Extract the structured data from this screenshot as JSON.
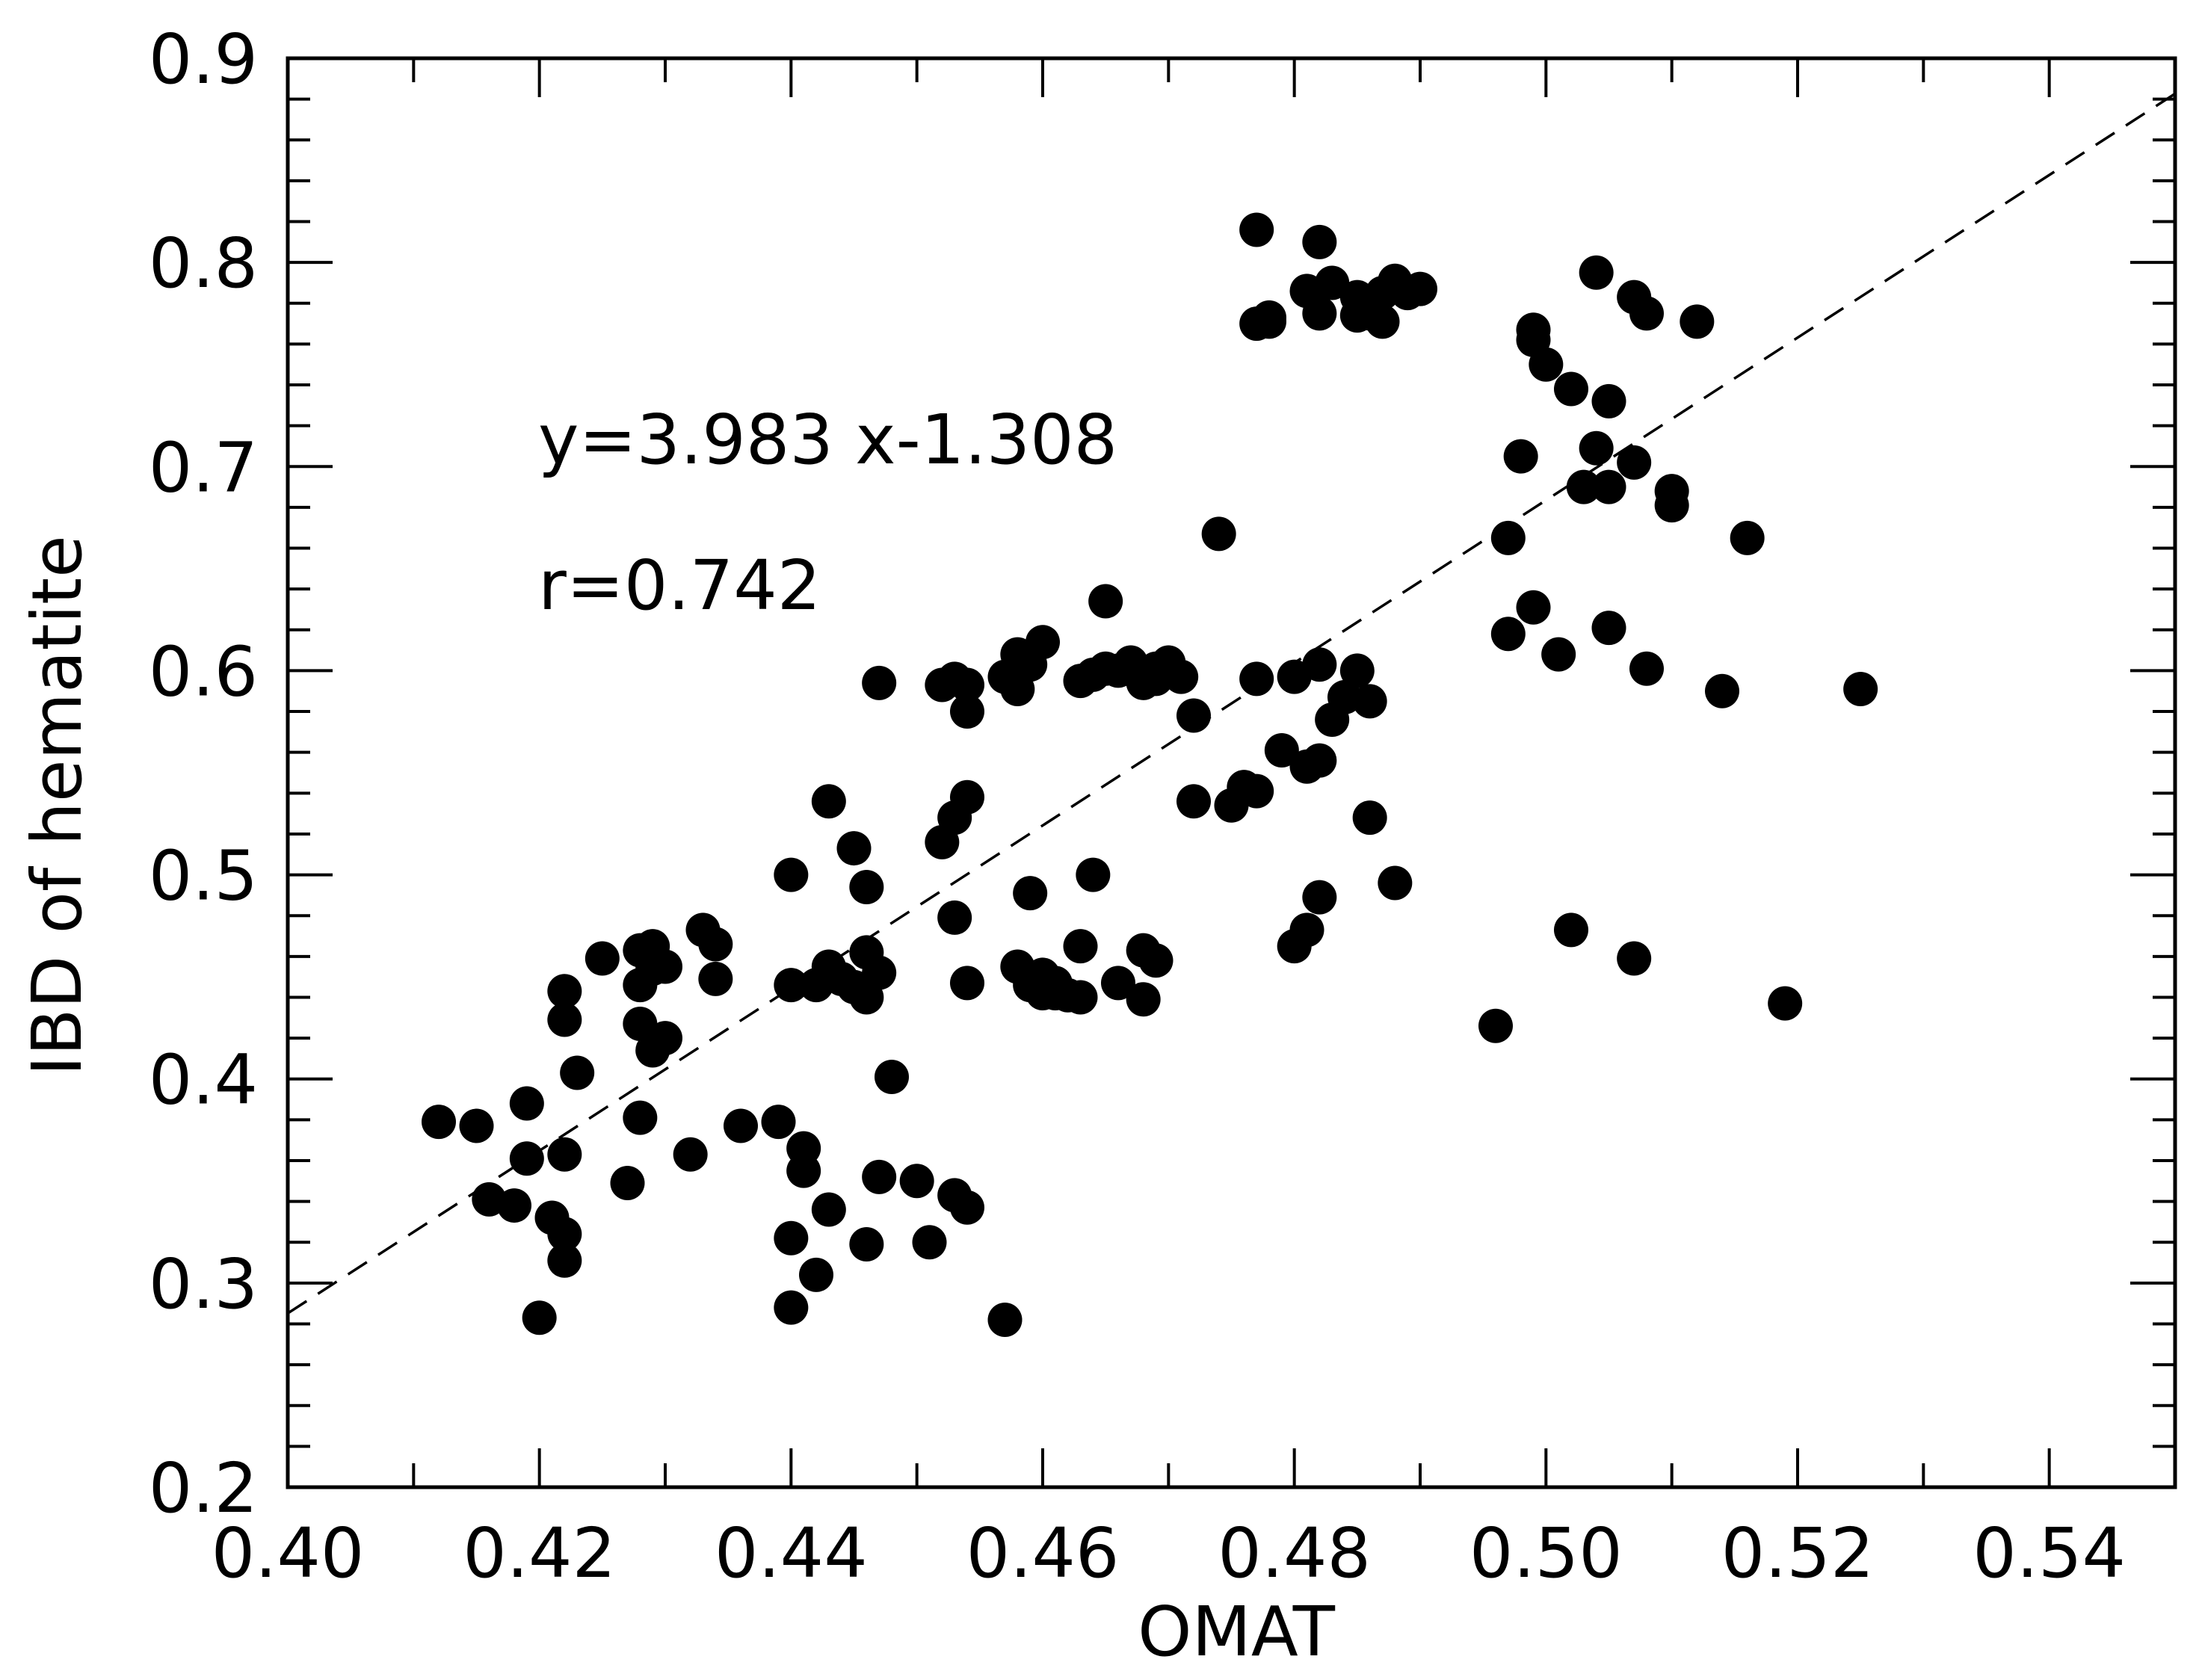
{
  "chart_data": {
    "type": "scatter",
    "title": "",
    "xlabel": "OMAT",
    "ylabel": "IBD of hematite",
    "xlim": [
      0.4,
      0.55
    ],
    "ylim": [
      0.2,
      0.9
    ],
    "x_ticks": [
      0.4,
      0.42,
      0.44,
      0.46,
      0.48,
      0.5,
      0.52,
      0.54
    ],
    "x_tick_labels": [
      "0.40",
      "0.42",
      "0.44",
      "0.46",
      "0.48",
      "0.50",
      "0.52",
      "0.54"
    ],
    "y_ticks": [
      0.2,
      0.3,
      0.4,
      0.5,
      0.6,
      0.7,
      0.8,
      0.9
    ],
    "y_tick_labels": [
      "0.2",
      "0.3",
      "0.4",
      "0.5",
      "0.6",
      "0.7",
      "0.8",
      "0.9"
    ],
    "grid": false,
    "legend": "none",
    "marker_color": "#000000",
    "annotations": {
      "equation": "y=3.983  x-1.308",
      "r_value": "r=0.742"
    },
    "fit_line": {
      "slope": 3.983,
      "intercept": -1.308,
      "style": "dashed"
    },
    "series": [
      {
        "points": [
          [
            0.412,
            0.379
          ],
          [
            0.415,
            0.377
          ],
          [
            0.416,
            0.341
          ],
          [
            0.418,
            0.338
          ],
          [
            0.419,
            0.361
          ],
          [
            0.419,
            0.388
          ],
          [
            0.42,
            0.283
          ],
          [
            0.421,
            0.332
          ],
          [
            0.422,
            0.324
          ],
          [
            0.422,
            0.311
          ],
          [
            0.422,
            0.363
          ],
          [
            0.422,
            0.429
          ],
          [
            0.422,
            0.443
          ],
          [
            0.423,
            0.403
          ],
          [
            0.425,
            0.459
          ],
          [
            0.427,
            0.349
          ],
          [
            0.428,
            0.381
          ],
          [
            0.428,
            0.427
          ],
          [
            0.428,
            0.446
          ],
          [
            0.428,
            0.463
          ],
          [
            0.429,
            0.414
          ],
          [
            0.429,
            0.454
          ],
          [
            0.429,
            0.465
          ],
          [
            0.43,
            0.42
          ],
          [
            0.43,
            0.455
          ],
          [
            0.432,
            0.363
          ],
          [
            0.433,
            0.473
          ],
          [
            0.434,
            0.449
          ],
          [
            0.434,
            0.466
          ],
          [
            0.436,
            0.377
          ],
          [
            0.439,
            0.379
          ],
          [
            0.44,
            0.322
          ],
          [
            0.44,
            0.288
          ],
          [
            0.44,
            0.446
          ],
          [
            0.44,
            0.5
          ],
          [
            0.441,
            0.366
          ],
          [
            0.441,
            0.355
          ],
          [
            0.442,
            0.304
          ],
          [
            0.442,
            0.446
          ],
          [
            0.443,
            0.536
          ],
          [
            0.443,
            0.336
          ],
          [
            0.443,
            0.455
          ],
          [
            0.444,
            0.449
          ],
          [
            0.445,
            0.513
          ],
          [
            0.445,
            0.445
          ],
          [
            0.446,
            0.494
          ],
          [
            0.446,
            0.44
          ],
          [
            0.446,
            0.462
          ],
          [
            0.446,
            0.319
          ],
          [
            0.447,
            0.352
          ],
          [
            0.447,
            0.452
          ],
          [
            0.447,
            0.594
          ],
          [
            0.448,
            0.401
          ],
          [
            0.45,
            0.35
          ],
          [
            0.451,
            0.32
          ],
          [
            0.452,
            0.516
          ],
          [
            0.452,
            0.593
          ],
          [
            0.453,
            0.479
          ],
          [
            0.453,
            0.528
          ],
          [
            0.453,
            0.596
          ],
          [
            0.453,
            0.343
          ],
          [
            0.454,
            0.593
          ],
          [
            0.454,
            0.58
          ],
          [
            0.454,
            0.538
          ],
          [
            0.454,
            0.337
          ],
          [
            0.454,
            0.447
          ],
          [
            0.457,
            0.282
          ],
          [
            0.457,
            0.597
          ],
          [
            0.458,
            0.608
          ],
          [
            0.458,
            0.591
          ],
          [
            0.458,
            0.455
          ],
          [
            0.459,
            0.491
          ],
          [
            0.459,
            0.446
          ],
          [
            0.459,
            0.603
          ],
          [
            0.46,
            0.614
          ],
          [
            0.46,
            0.442
          ],
          [
            0.46,
            0.451
          ],
          [
            0.461,
            0.442
          ],
          [
            0.461,
            0.447
          ],
          [
            0.462,
            0.441
          ],
          [
            0.463,
            0.595
          ],
          [
            0.463,
            0.465
          ],
          [
            0.463,
            0.44
          ],
          [
            0.464,
            0.5
          ],
          [
            0.464,
            0.598
          ],
          [
            0.465,
            0.634
          ],
          [
            0.465,
            0.601
          ],
          [
            0.466,
            0.447
          ],
          [
            0.466,
            0.6
          ],
          [
            0.467,
            0.604
          ],
          [
            0.468,
            0.594
          ],
          [
            0.468,
            0.463
          ],
          [
            0.468,
            0.439
          ],
          [
            0.469,
            0.601
          ],
          [
            0.469,
            0.596
          ],
          [
            0.469,
            0.458
          ],
          [
            0.47,
            0.604
          ],
          [
            0.471,
            0.597
          ],
          [
            0.472,
            0.578
          ],
          [
            0.472,
            0.536
          ],
          [
            0.474,
            0.667
          ],
          [
            0.475,
            0.534
          ],
          [
            0.476,
            0.543
          ],
          [
            0.477,
            0.541
          ],
          [
            0.477,
            0.596
          ],
          [
            0.477,
            0.816
          ],
          [
            0.477,
            0.77
          ],
          [
            0.478,
            0.771
          ],
          [
            0.478,
            0.773
          ],
          [
            0.479,
            0.561
          ],
          [
            0.48,
            0.465
          ],
          [
            0.48,
            0.597
          ],
          [
            0.481,
            0.473
          ],
          [
            0.481,
            0.553
          ],
          [
            0.481,
            0.786
          ],
          [
            0.482,
            0.775
          ],
          [
            0.482,
            0.81
          ],
          [
            0.482,
            0.603
          ],
          [
            0.482,
            0.556
          ],
          [
            0.482,
            0.489
          ],
          [
            0.483,
            0.576
          ],
          [
            0.483,
            0.79
          ],
          [
            0.484,
            0.587
          ],
          [
            0.485,
            0.774
          ],
          [
            0.485,
            0.783
          ],
          [
            0.485,
            0.6
          ],
          [
            0.486,
            0.585
          ],
          [
            0.486,
            0.528
          ],
          [
            0.486,
            0.775
          ],
          [
            0.487,
            0.771
          ],
          [
            0.487,
            0.785
          ],
          [
            0.488,
            0.496
          ],
          [
            0.488,
            0.791
          ],
          [
            0.489,
            0.785
          ],
          [
            0.49,
            0.787
          ],
          [
            0.496,
            0.426
          ],
          [
            0.497,
            0.665
          ],
          [
            0.497,
            0.618
          ],
          [
            0.498,
            0.705
          ],
          [
            0.499,
            0.631
          ],
          [
            0.499,
            0.767
          ],
          [
            0.499,
            0.762
          ],
          [
            0.5,
            0.75
          ],
          [
            0.501,
            0.608
          ],
          [
            0.502,
            0.473
          ],
          [
            0.502,
            0.738
          ],
          [
            0.503,
            0.69
          ],
          [
            0.504,
            0.795
          ],
          [
            0.504,
            0.709
          ],
          [
            0.505,
            0.732
          ],
          [
            0.505,
            0.69
          ],
          [
            0.505,
            0.621
          ],
          [
            0.507,
            0.459
          ],
          [
            0.507,
            0.702
          ],
          [
            0.507,
            0.783
          ],
          [
            0.508,
            0.775
          ],
          [
            0.508,
            0.601
          ],
          [
            0.51,
            0.681
          ],
          [
            0.51,
            0.688
          ],
          [
            0.512,
            0.771
          ],
          [
            0.514,
            0.59
          ],
          [
            0.516,
            0.665
          ],
          [
            0.519,
            0.437
          ],
          [
            0.525,
            0.591
          ]
        ]
      }
    ]
  }
}
